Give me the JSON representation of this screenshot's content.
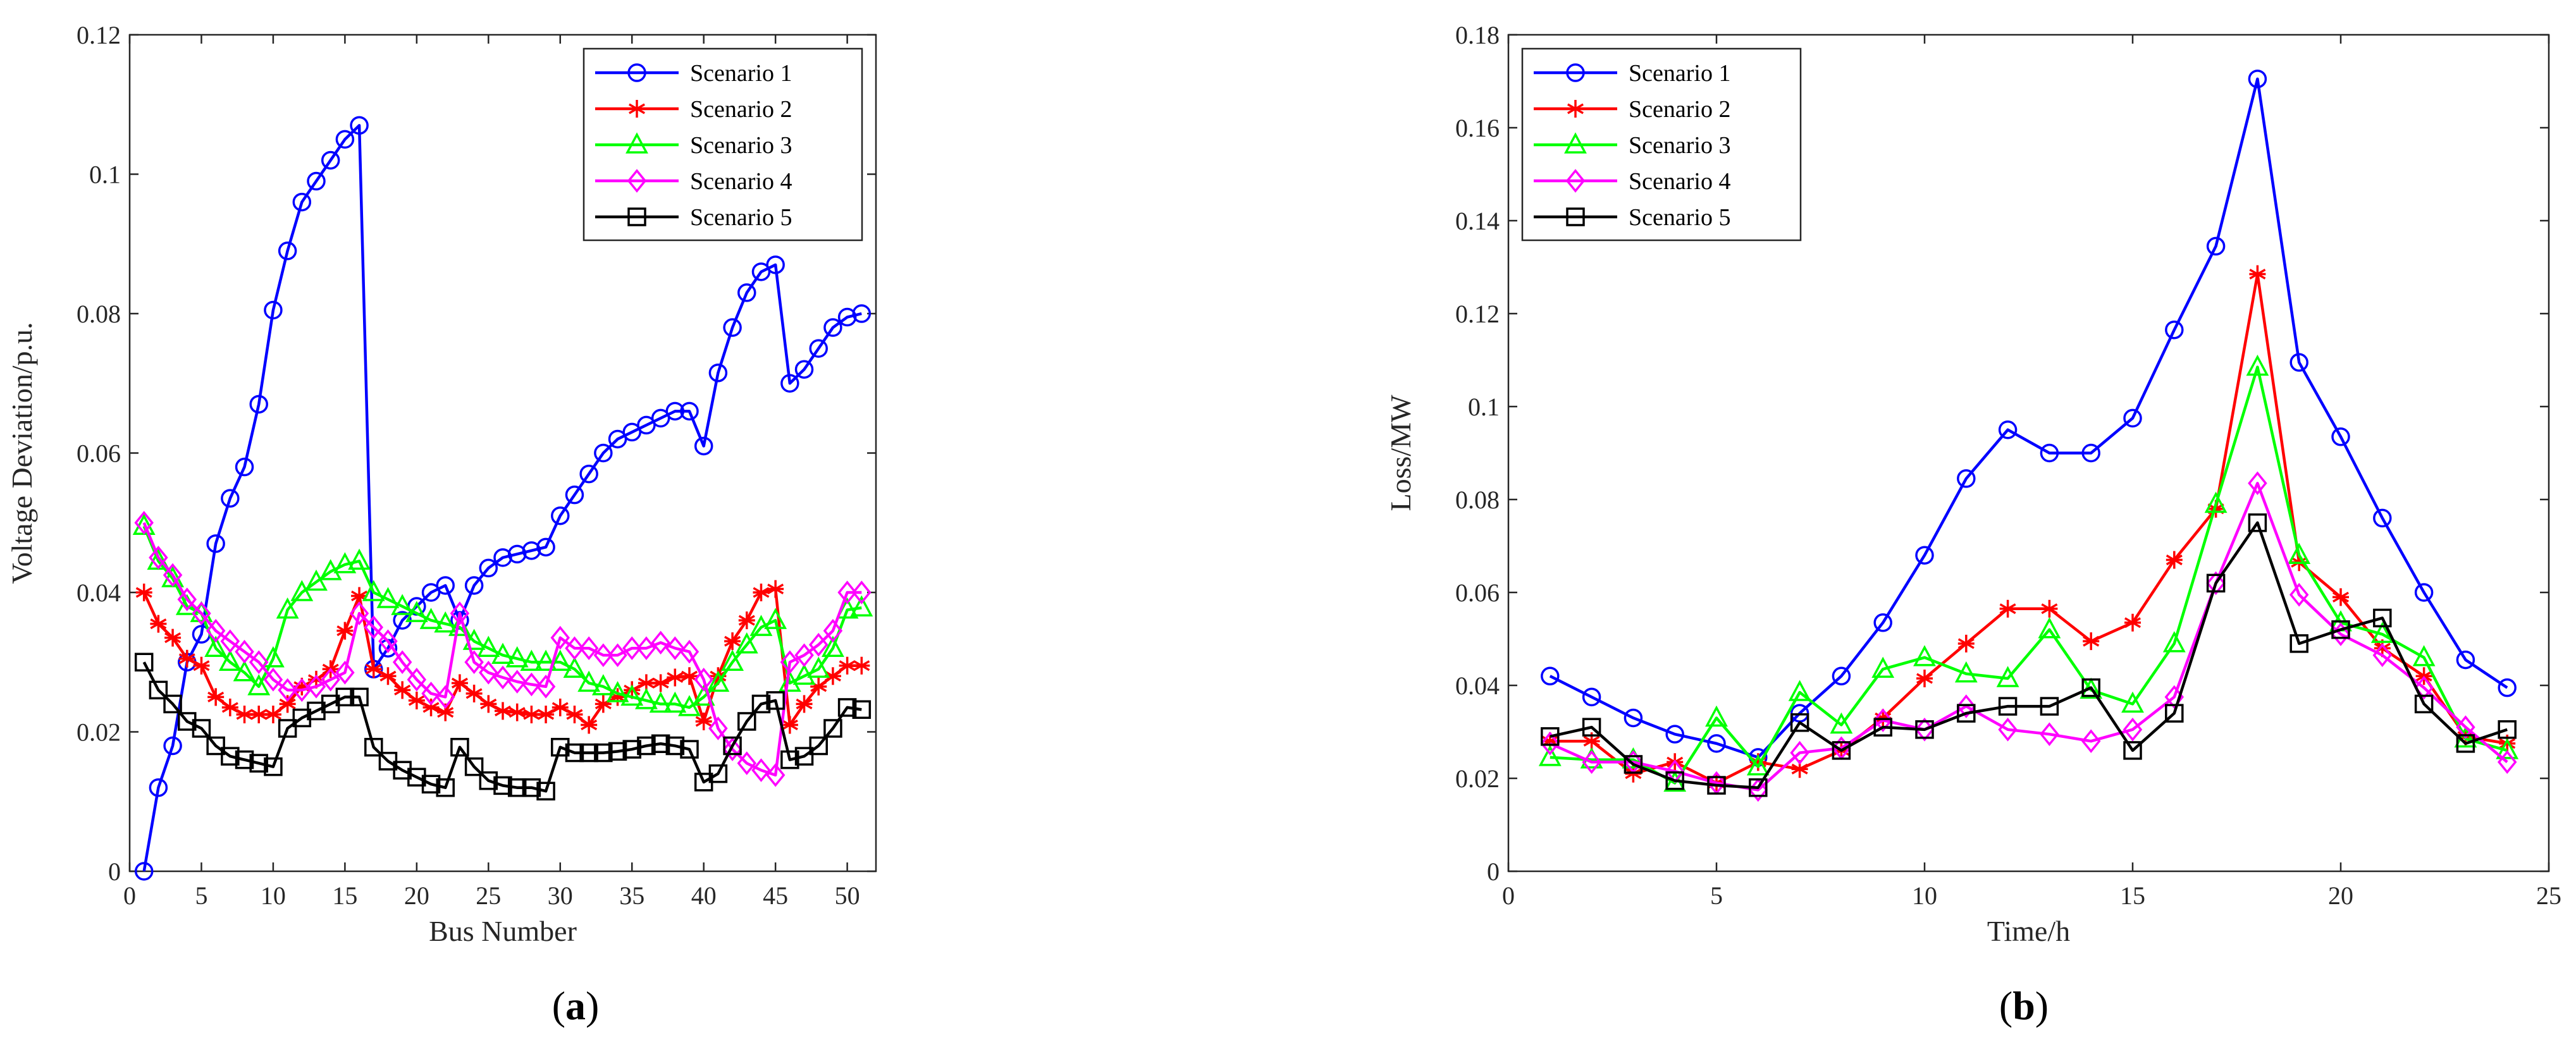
{
  "chart_data": [
    {
      "type": "line",
      "panel_label": "a",
      "xlabel": "Bus Number",
      "ylabel": "Voltage Deviation/p.u.",
      "xlim": [
        0,
        52
      ],
      "ylim": [
        0,
        0.12
      ],
      "xticks": [
        0,
        5,
        10,
        15,
        20,
        25,
        30,
        35,
        40,
        45,
        50
      ],
      "yticks": [
        0,
        0.02,
        0.04,
        0.06,
        0.08,
        0.1,
        0.12
      ],
      "ytick_labels": [
        "0",
        "0.02",
        "0.04",
        "0.06",
        "0.08",
        "0.1",
        "0.12"
      ],
      "legend_position": "top-right",
      "x": [
        1,
        2,
        3,
        4,
        5,
        6,
        7,
        8,
        9,
        10,
        11,
        12,
        13,
        14,
        15,
        16,
        17,
        18,
        19,
        20,
        21,
        22,
        23,
        24,
        25,
        26,
        27,
        28,
        29,
        30,
        31,
        32,
        33,
        34,
        35,
        36,
        37,
        38,
        39,
        40,
        41,
        42,
        43,
        44,
        45,
        46,
        47,
        48,
        49,
        50,
        51
      ],
      "series": [
        {
          "name": "Scenario 1",
          "color": "#0000ff",
          "marker": "circle",
          "values": [
            0,
            0.012,
            0.018,
            0.03,
            0.034,
            0.047,
            0.0535,
            0.058,
            0.067,
            0.0805,
            0.089,
            0.096,
            0.099,
            0.102,
            0.105,
            0.107,
            0.029,
            0.032,
            0.036,
            0.038,
            0.04,
            0.041,
            0.036,
            0.041,
            0.0435,
            0.045,
            0.0455,
            0.046,
            0.0465,
            0.051,
            0.054,
            0.057,
            0.06,
            0.062,
            0.063,
            0.064,
            0.065,
            0.066,
            0.066,
            0.061,
            0.0715,
            0.078,
            0.083,
            0.086,
            0.087,
            0.07,
            0.072,
            0.075,
            0.078,
            0.0795,
            0.08
          ]
        },
        {
          "name": "Scenario 2",
          "color": "#ff0000",
          "marker": "star",
          "values": [
            0.04,
            0.0355,
            0.0335,
            0.0305,
            0.0295,
            0.025,
            0.0235,
            0.0225,
            0.0225,
            0.0225,
            0.024,
            0.0265,
            0.0275,
            0.029,
            0.0345,
            0.0395,
            0.029,
            0.028,
            0.026,
            0.0245,
            0.0235,
            0.0228,
            0.027,
            0.0255,
            0.024,
            0.023,
            0.0228,
            0.0225,
            0.0225,
            0.0235,
            0.0225,
            0.021,
            0.024,
            0.025,
            0.026,
            0.027,
            0.027,
            0.0278,
            0.028,
            0.0215,
            0.028,
            0.033,
            0.036,
            0.04,
            0.0405,
            0.021,
            0.024,
            0.0265,
            0.028,
            0.0295,
            0.0295
          ]
        },
        {
          "name": "Scenario 3",
          "color": "#00ff00",
          "marker": "triangle",
          "values": [
            0.0495,
            0.0445,
            0.042,
            0.038,
            0.037,
            0.032,
            0.03,
            0.0285,
            0.0265,
            0.0305,
            0.0375,
            0.04,
            0.0415,
            0.043,
            0.044,
            0.0445,
            0.04,
            0.039,
            0.038,
            0.037,
            0.036,
            0.0355,
            0.035,
            0.033,
            0.032,
            0.031,
            0.0305,
            0.03,
            0.03,
            0.03,
            0.029,
            0.027,
            0.0265,
            0.0255,
            0.025,
            0.0245,
            0.024,
            0.024,
            0.0235,
            0.025,
            0.027,
            0.03,
            0.0325,
            0.035,
            0.036,
            0.027,
            0.028,
            0.029,
            0.032,
            0.0375,
            0.0378
          ]
        },
        {
          "name": "Scenario 4",
          "color": "#ff00ff",
          "marker": "diamond",
          "values": [
            0.05,
            0.045,
            0.0425,
            0.039,
            0.037,
            0.0345,
            0.033,
            0.0315,
            0.03,
            0.0275,
            0.026,
            0.026,
            0.0265,
            0.0275,
            0.0285,
            0.037,
            0.035,
            0.033,
            0.03,
            0.0275,
            0.0255,
            0.025,
            0.037,
            0.03,
            0.0285,
            0.0278,
            0.0272,
            0.0268,
            0.0265,
            0.0335,
            0.032,
            0.032,
            0.031,
            0.031,
            0.032,
            0.032,
            0.0328,
            0.032,
            0.0315,
            0.0275,
            0.0205,
            0.0175,
            0.0155,
            0.0145,
            0.0138,
            0.03,
            0.031,
            0.0325,
            0.0345,
            0.04,
            0.04
          ]
        },
        {
          "name": "Scenario 5",
          "color": "#000000",
          "marker": "square",
          "values": [
            0.03,
            0.026,
            0.024,
            0.0215,
            0.0205,
            0.018,
            0.0165,
            0.016,
            0.0155,
            0.015,
            0.0205,
            0.022,
            0.023,
            0.024,
            0.025,
            0.025,
            0.0178,
            0.0158,
            0.0145,
            0.0135,
            0.0125,
            0.012,
            0.0178,
            0.015,
            0.013,
            0.0123,
            0.012,
            0.012,
            0.0115,
            0.0178,
            0.017,
            0.017,
            0.017,
            0.0172,
            0.0175,
            0.018,
            0.0183,
            0.018,
            0.0175,
            0.0128,
            0.014,
            0.018,
            0.0215,
            0.024,
            0.0245,
            0.016,
            0.0165,
            0.018,
            0.0205,
            0.0235,
            0.0232
          ]
        }
      ]
    },
    {
      "type": "line",
      "panel_label": "b",
      "xlabel": "Time/h",
      "ylabel": "Loss/MW",
      "xlim": [
        0,
        25
      ],
      "ylim": [
        0,
        0.18
      ],
      "xticks": [
        0,
        5,
        10,
        15,
        20,
        25
      ],
      "yticks": [
        0,
        0.02,
        0.04,
        0.06,
        0.08,
        0.1,
        0.12,
        0.14,
        0.16,
        0.18
      ],
      "ytick_labels": [
        "0",
        "0.02",
        "0.04",
        "0.06",
        "0.08",
        "0.1",
        "0.12",
        "0.14",
        "0.16",
        "0.18"
      ],
      "legend_position": "top-left",
      "x": [
        1,
        2,
        3,
        4,
        5,
        6,
        7,
        8,
        9,
        10,
        11,
        12,
        13,
        14,
        15,
        16,
        17,
        18,
        19,
        20,
        21,
        22,
        23,
        24
      ],
      "series": [
        {
          "name": "Scenario 1",
          "color": "#0000ff",
          "marker": "circle",
          "values": [
            0.042,
            0.0375,
            0.033,
            0.0295,
            0.0275,
            0.0245,
            0.034,
            0.042,
            0.0535,
            0.068,
            0.0845,
            0.095,
            0.09,
            0.09,
            0.0975,
            0.1165,
            0.1345,
            0.1705,
            0.1095,
            0.0935,
            0.076,
            0.06,
            0.0455,
            0.0395
          ]
        },
        {
          "name": "Scenario 2",
          "color": "#ff0000",
          "marker": "star",
          "values": [
            0.028,
            0.028,
            0.021,
            0.0235,
            0.019,
            0.0235,
            0.022,
            0.026,
            0.033,
            0.0415,
            0.049,
            0.0565,
            0.0565,
            0.0495,
            0.0535,
            0.067,
            0.078,
            0.1285,
            0.0665,
            0.059,
            0.048,
            0.042,
            0.029,
            0.0275
          ]
        },
        {
          "name": "Scenario 3",
          "color": "#00ff00",
          "marker": "triangle",
          "values": [
            0.0245,
            0.024,
            0.024,
            0.019,
            0.033,
            0.0225,
            0.0385,
            0.0315,
            0.0435,
            0.046,
            0.0425,
            0.0415,
            0.052,
            0.039,
            0.036,
            0.049,
            0.079,
            0.1085,
            0.068,
            0.0535,
            0.051,
            0.046,
            0.0285,
            0.026
          ]
        },
        {
          "name": "Scenario 4",
          "color": "#ff00ff",
          "marker": "diamond",
          "values": [
            0.0275,
            0.0235,
            0.0235,
            0.0215,
            0.019,
            0.0175,
            0.0255,
            0.0265,
            0.0325,
            0.0305,
            0.0355,
            0.0305,
            0.0295,
            0.028,
            0.0305,
            0.0375,
            0.062,
            0.0835,
            0.0595,
            0.051,
            0.0465,
            0.0395,
            0.031,
            0.0235
          ]
        },
        {
          "name": "Scenario 5",
          "color": "#000000",
          "marker": "square",
          "values": [
            0.029,
            0.031,
            0.023,
            0.0195,
            0.0185,
            0.018,
            0.032,
            0.026,
            0.031,
            0.0305,
            0.034,
            0.0355,
            0.0355,
            0.0395,
            0.026,
            0.034,
            0.062,
            0.075,
            0.049,
            0.052,
            0.0545,
            0.036,
            0.0275,
            0.0305
          ]
        }
      ]
    }
  ]
}
